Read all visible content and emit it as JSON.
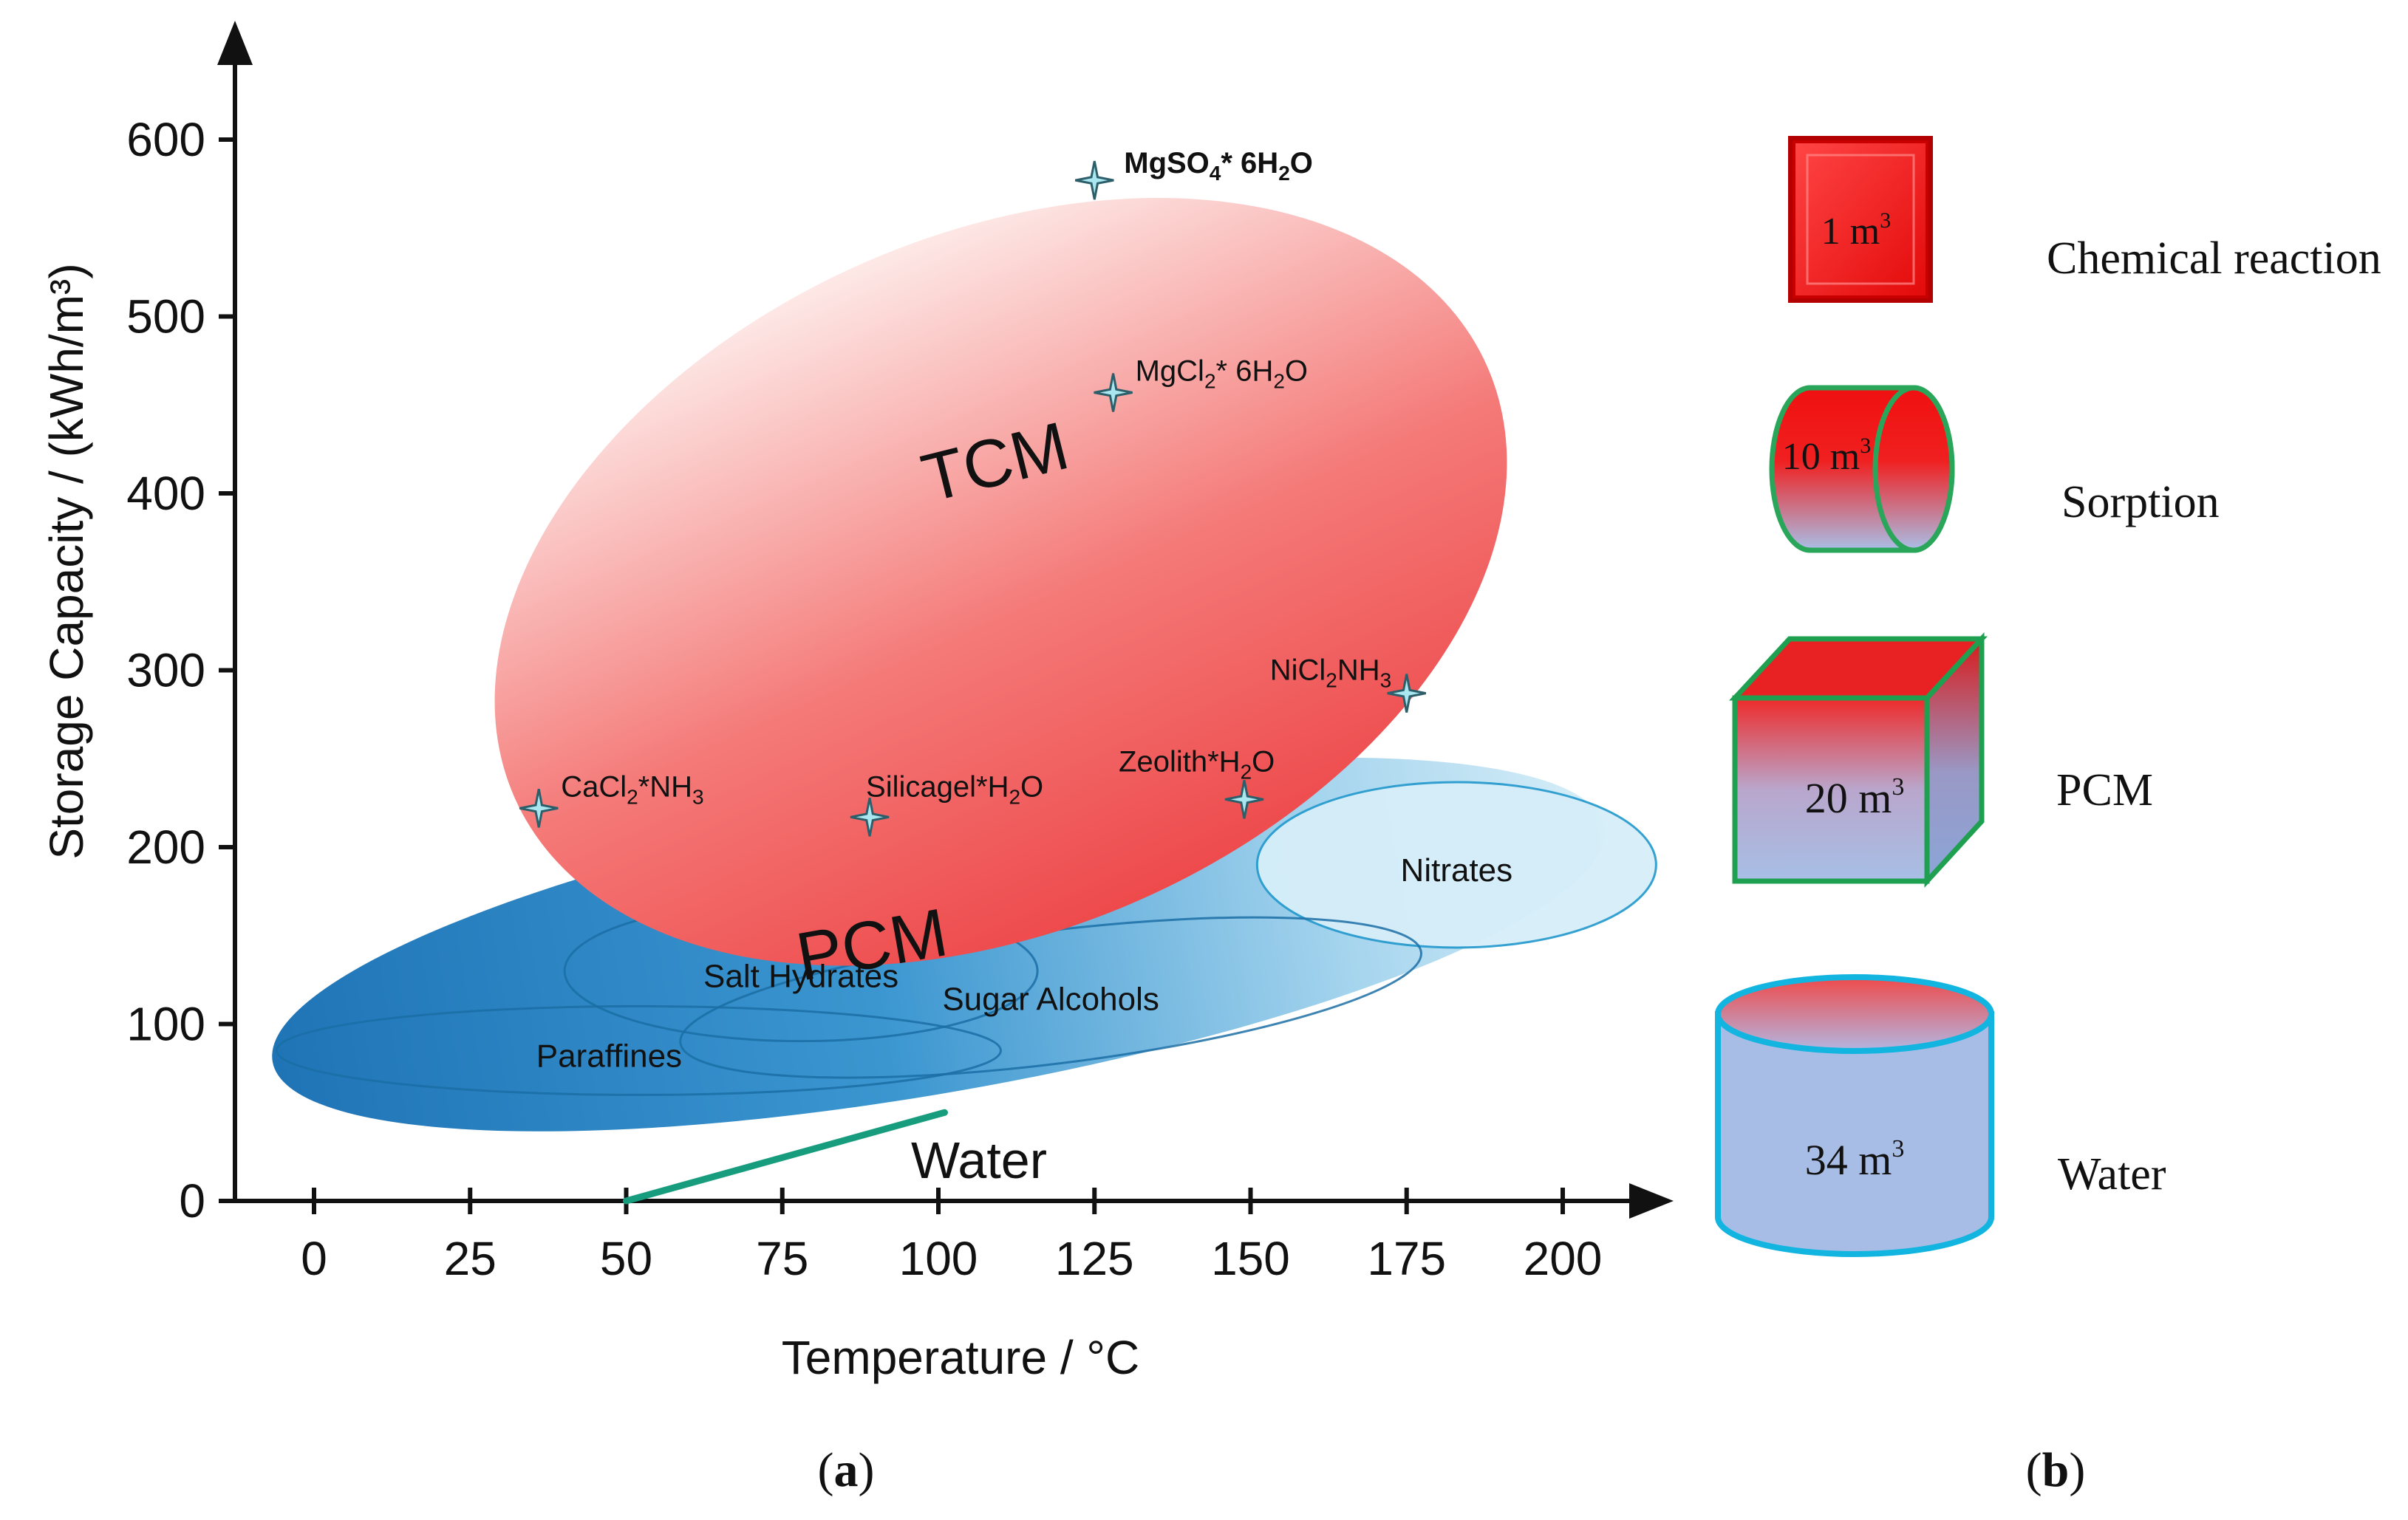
{
  "panel_a_caption": "a",
  "panel_b_caption": "b",
  "chart_data": {
    "type": "scatter",
    "title": "",
    "xlabel": "Temperature / °C",
    "ylabel": "Storage Capacity / (kWh/m³)",
    "xlim": [
      -12,
      215
    ],
    "ylim": [
      0,
      640
    ],
    "xticks": [
      0,
      25,
      50,
      75,
      100,
      125,
      150,
      175,
      200
    ],
    "yticks": [
      0,
      100,
      200,
      300,
      400,
      500,
      600
    ],
    "grid": false,
    "points": [
      {
        "label": "MgSO",
        "sub1": "4",
        "mid": "* 6H",
        "sub2": "2",
        "tail": "O",
        "x": 125,
        "y": 577
      },
      {
        "label": "MgCl",
        "sub1": "2",
        "mid": "* 6H",
        "sub2": "2",
        "tail": "O",
        "x": 128,
        "y": 457
      },
      {
        "label": "NiCl",
        "sub1": "2",
        "mid": "NH",
        "sub2": "3",
        "tail": "",
        "x": 175,
        "y": 287
      },
      {
        "label": "CaCl",
        "sub1": "2",
        "mid": "*NH",
        "sub2": "3",
        "tail": "",
        "x": 36,
        "y": 222
      },
      {
        "label": "Silicagel*H",
        "sub1": "2",
        "mid": "O",
        "sub2": "",
        "tail": "",
        "x": 89,
        "y": 217
      },
      {
        "label": "Zeolith*H",
        "sub1": "2",
        "mid": "O",
        "sub2": "",
        "tail": "",
        "x": 149,
        "y": 227
      }
    ],
    "regions": [
      {
        "name": "TCM",
        "kind": "large",
        "center": [
          110,
          350
        ],
        "color": "#e8434b"
      },
      {
        "name": "PCM",
        "kind": "large",
        "center": [
          100,
          145
        ],
        "color": "#2a86c4"
      },
      {
        "name": "Nitrates",
        "kind": "sub",
        "center": [
          183,
          190
        ]
      },
      {
        "name": "Salt Hydrates",
        "kind": "sub",
        "center": [
          78,
          130
        ]
      },
      {
        "name": "Sugar Alcohols",
        "kind": "sub",
        "center": [
          118,
          115
        ]
      },
      {
        "name": "Paraffines",
        "kind": "sub",
        "center": [
          52,
          85
        ]
      }
    ],
    "water_line": {
      "label": "Water",
      "x": [
        50,
        101
      ],
      "y": [
        0,
        50
      ],
      "color": "#179c7d"
    }
  },
  "panel_b": {
    "items": [
      {
        "volume": "1 m",
        "sup": "3",
        "label": "Chemical reaction"
      },
      {
        "volume": "10 m",
        "sup": "3",
        "label": "Sorption"
      },
      {
        "volume": "20 m",
        "sup": "3",
        "label": "PCM"
      },
      {
        "volume": "34 m",
        "sup": "3",
        "label": "Water"
      }
    ]
  }
}
